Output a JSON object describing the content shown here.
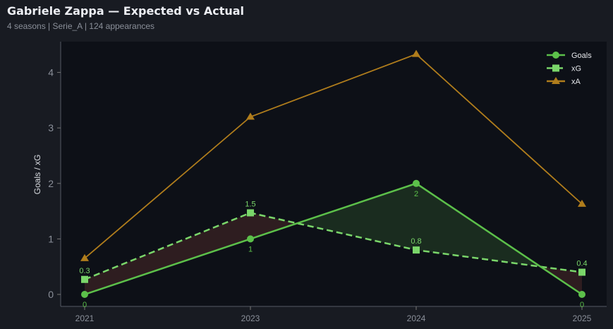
{
  "title": "Gabriele Zappa — Expected vs Actual",
  "subtitle": "4 seasons | Serie_A | 124 appearances",
  "chart_data": {
    "type": "line",
    "title": "Gabriele Zappa — Expected vs Actual",
    "xlabel": "",
    "ylabel": "Goals / xG",
    "categories": [
      "2021",
      "2023",
      "2024",
      "2025"
    ],
    "ylim": [
      -0.2,
      4.5
    ],
    "yticks": [
      0,
      1,
      2,
      3,
      4
    ],
    "grid": false,
    "legend": "bottom-right",
    "series": [
      {
        "name": "Goals",
        "values": [
          0,
          1,
          2,
          0
        ],
        "labels": [
          "0",
          "1",
          "2",
          "0"
        ],
        "color": "#5cc04a",
        "marker": "circle",
        "style": "solid"
      },
      {
        "name": "xG",
        "values": [
          0.27,
          1.47,
          0.8,
          0.4
        ],
        "labels": [
          "0.3",
          "1.5",
          "0.8",
          "0.4"
        ],
        "color": "#7ad66a",
        "marker": "square",
        "style": "dashed"
      },
      {
        "name": "xA",
        "values": [
          0.65,
          3.2,
          4.33,
          1.63
        ],
        "color": "#b07d1c",
        "marker": "triangle",
        "style": "solid"
      }
    ],
    "fill_colors": {
      "under": "#2e1d20",
      "over": "#1a2c1f"
    }
  }
}
